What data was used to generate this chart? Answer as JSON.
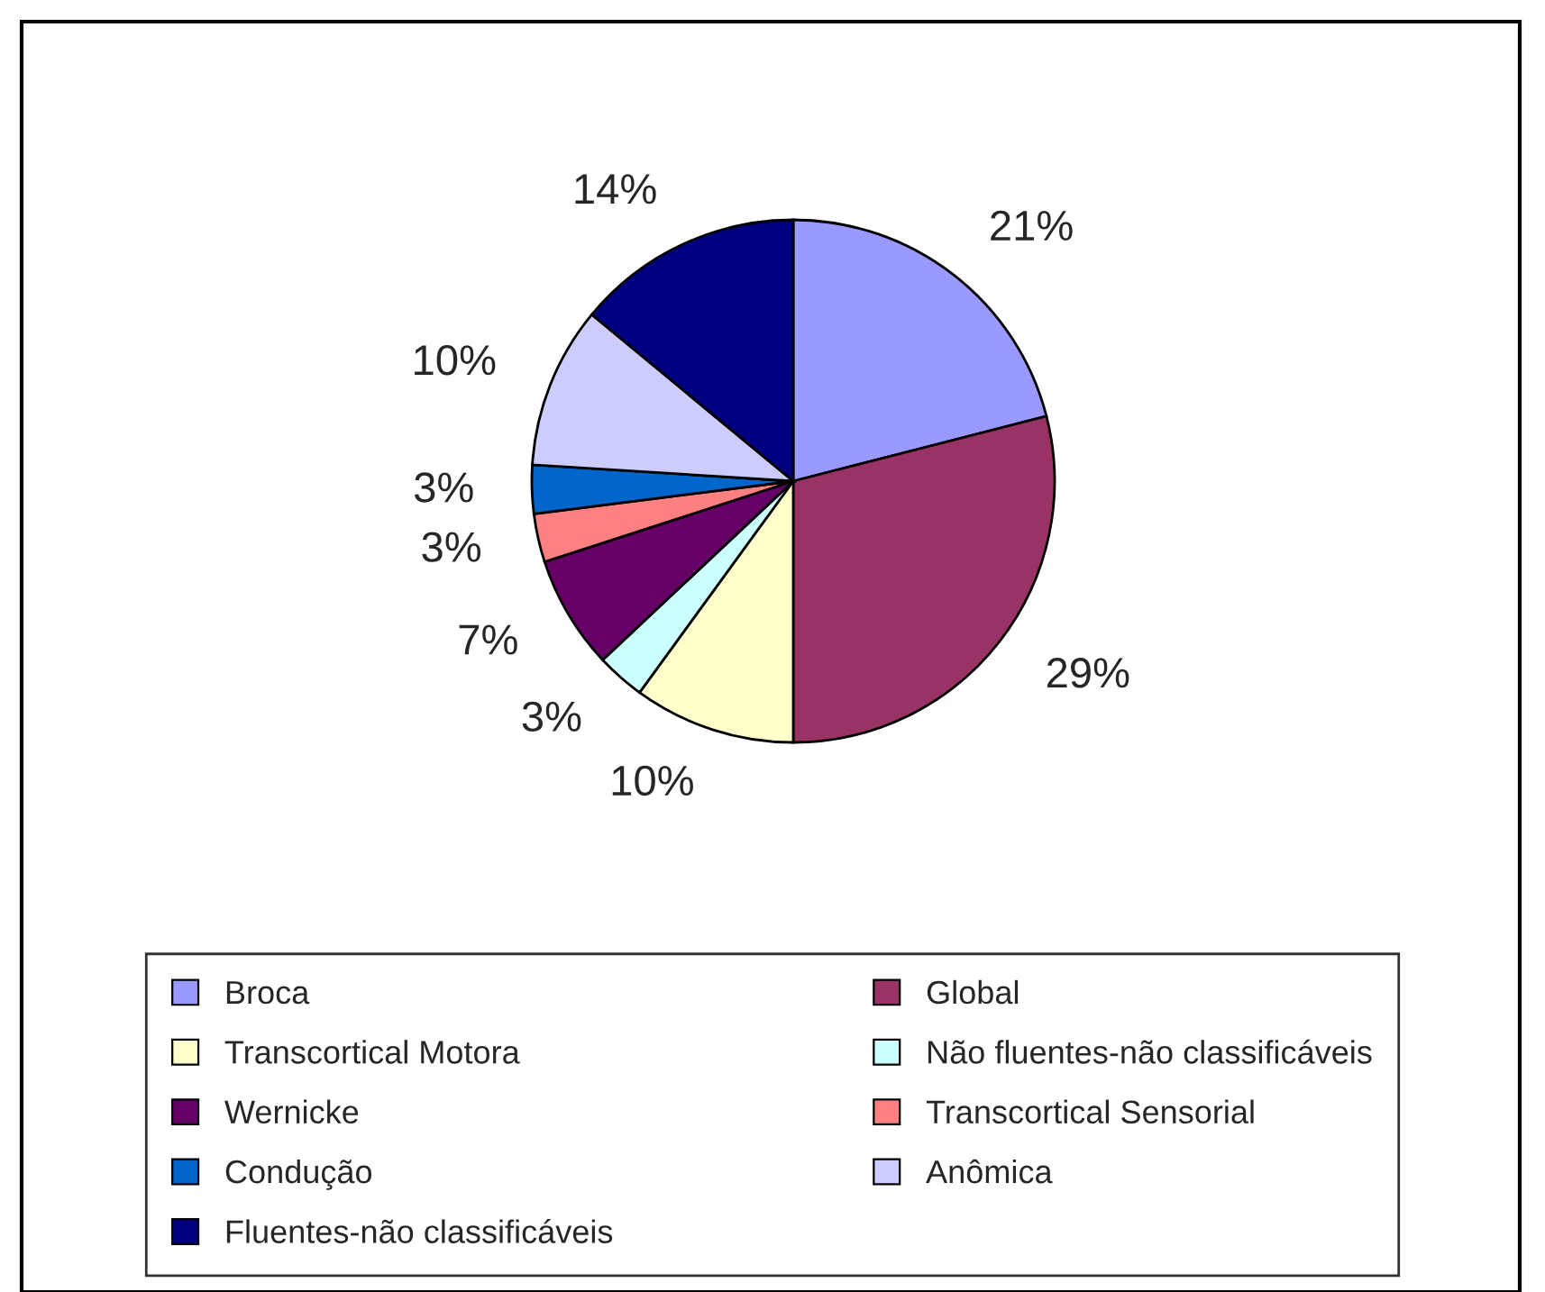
{
  "chart_data": {
    "type": "pie",
    "categories": [
      "Broca",
      "Global",
      "Transcortical Motora",
      "Não fluentes-não classificáveis",
      "Wernicke",
      "Transcortical Sensorial",
      "Condução",
      "Anômica",
      "Fluentes-não classificáveis"
    ],
    "values": [
      21,
      29,
      10,
      3,
      7,
      3,
      3,
      10,
      14
    ],
    "value_labels": [
      "21%",
      "29%",
      "10%",
      "3%",
      "7%",
      "3%",
      "3%",
      "10%",
      "14%"
    ],
    "colors": [
      "#9999ff",
      "#993366",
      "#ffffcc",
      "#ccffff",
      "#660066",
      "#ff8080",
      "#0066cc",
      "#ccccff",
      "#000080"
    ],
    "legend": "bottom"
  }
}
